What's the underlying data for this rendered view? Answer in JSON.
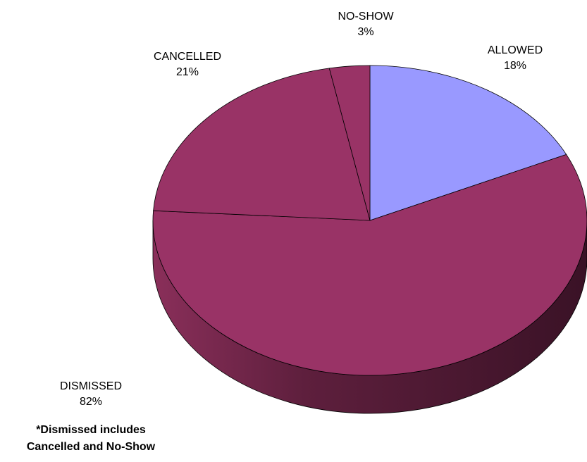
{
  "chart_data": {
    "type": "pie",
    "style": "3d",
    "slices": [
      {
        "label": "ALLOWED",
        "value": 18,
        "value_label": "18%",
        "color": "#9999FF"
      },
      {
        "label": "DISMISSED",
        "value": 82,
        "value_label": "82%",
        "color": "#993366"
      }
    ],
    "sub_slices_of_dismissed": [
      {
        "label": "CANCELLED",
        "value": 21,
        "value_label": "21%",
        "color": "#993366"
      },
      {
        "label": "NO-SHOW",
        "value": 3,
        "value_label": "3%",
        "color": "#993366"
      }
    ]
  },
  "footnote": {
    "line1": "*Dismissed includes",
    "line2": "Cancelled and No-Show"
  }
}
